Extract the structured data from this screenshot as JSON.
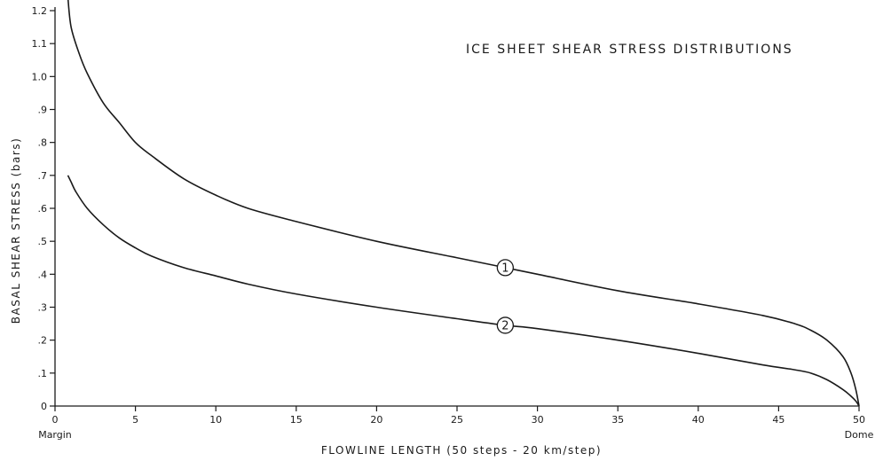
{
  "chart_data": {
    "type": "line",
    "title": "ICE SHEET SHEAR STRESS DISTRIBUTIONS",
    "xlabel": "FLOWLINE LENGTH (50 steps - 20 km/step)",
    "ylabel": "BASAL SHEAR STRESS (bars)",
    "xlim": [
      0,
      50
    ],
    "ylim": [
      0,
      1.2
    ],
    "x_ticks": [
      0,
      5,
      10,
      15,
      20,
      25,
      30,
      35,
      40,
      45,
      50
    ],
    "x_tick_labels": [
      "0",
      "5",
      "10",
      "15",
      "20",
      "25",
      "30",
      "35",
      "40",
      "45",
      "50"
    ],
    "y_ticks": [
      0,
      0.1,
      0.2,
      0.3,
      0.4,
      0.5,
      0.6,
      0.7,
      0.8,
      0.9,
      1.0,
      1.1,
      1.2
    ],
    "y_tick_labels": [
      "0",
      ".1",
      ".2",
      ".3",
      ".4",
      ".5",
      ".6",
      ".7",
      ".8",
      ".9",
      "1.0",
      "1.1",
      "1.2"
    ],
    "x_end_labels": {
      "left": "Margin",
      "right": "Dome"
    },
    "grid": false,
    "series": [
      {
        "name": "1",
        "label_at_x": 28,
        "x": [
          0.8,
          1.0,
          1.5,
          2,
          3,
          4,
          5,
          6,
          8,
          10,
          12,
          15,
          20,
          25,
          28,
          30,
          35,
          40,
          44,
          46,
          47,
          48,
          49,
          49.5,
          49.8,
          50
        ],
        "y": [
          1.24,
          1.15,
          1.07,
          1.01,
          0.92,
          0.86,
          0.8,
          0.76,
          0.69,
          0.64,
          0.6,
          0.56,
          0.5,
          0.45,
          0.42,
          0.4,
          0.35,
          0.31,
          0.275,
          0.25,
          0.23,
          0.2,
          0.15,
          0.1,
          0.05,
          0.0
        ]
      },
      {
        "name": "2",
        "label_at_x": 28,
        "x": [
          0.8,
          1.0,
          1.3,
          2,
          3,
          4,
          5,
          6,
          8,
          10,
          12,
          15,
          20,
          25,
          28,
          30,
          35,
          40,
          44,
          46,
          47,
          48,
          49,
          49.5,
          49.8,
          50
        ],
        "y": [
          0.7,
          0.68,
          0.65,
          0.6,
          0.55,
          0.51,
          0.48,
          0.455,
          0.42,
          0.395,
          0.37,
          0.34,
          0.3,
          0.265,
          0.245,
          0.235,
          0.2,
          0.16,
          0.125,
          0.11,
          0.1,
          0.08,
          0.05,
          0.03,
          0.015,
          0.0
        ]
      }
    ]
  }
}
